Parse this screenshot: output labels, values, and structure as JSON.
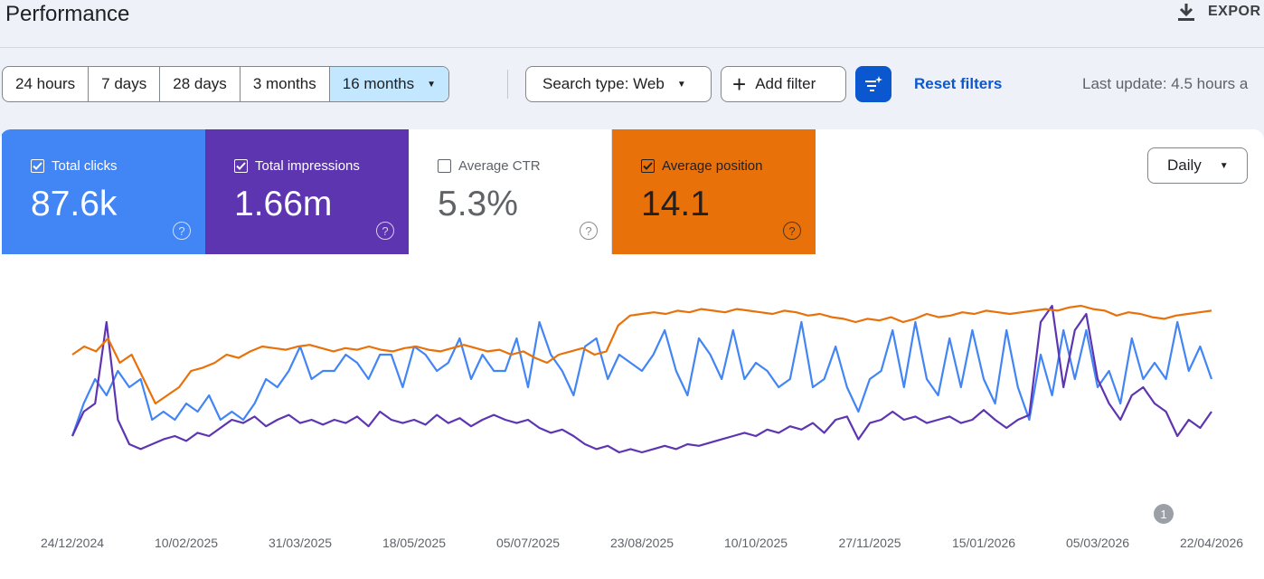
{
  "header": {
    "title": "Performance",
    "export_label": "EXPOR"
  },
  "toolbar": {
    "ranges": [
      "24 hours",
      "7 days",
      "28 days",
      "3 months",
      "16 months"
    ],
    "active_range": "16 months",
    "search_type": "Search type: Web",
    "add_filter": "Add filter",
    "reset_filters": "Reset filters",
    "last_update": "Last update: 4.5 hours a"
  },
  "metrics": [
    {
      "label": "Total clicks",
      "value": "87.6k",
      "checked": true,
      "color": "#4285f4"
    },
    {
      "label": "Total impressions",
      "value": "1.66m",
      "checked": true,
      "color": "#5e35b1"
    },
    {
      "label": "Average CTR",
      "value": "5.3%",
      "checked": false,
      "color": "#ffffff"
    },
    {
      "label": "Average position",
      "value": "14.1",
      "checked": true,
      "color": "#e8710a"
    }
  ],
  "granularity": "Daily",
  "annotation_badge": "1",
  "chart_data": {
    "type": "line",
    "x_tick_labels": [
      "24/12/2024",
      "10/02/2025",
      "31/03/2025",
      "18/05/2025",
      "05/07/2025",
      "23/08/2025",
      "10/10/2025",
      "27/11/2025",
      "15/01/2026",
      "05/03/2026",
      "22/04/2026"
    ],
    "grid": false,
    "series": [
      {
        "name": "Total clicks",
        "color": "#4285f4",
        "values": [
          0.2,
          0.4,
          0.55,
          0.45,
          0.6,
          0.5,
          0.55,
          0.3,
          0.35,
          0.3,
          0.4,
          0.35,
          0.45,
          0.3,
          0.35,
          0.3,
          0.4,
          0.55,
          0.5,
          0.6,
          0.75,
          0.55,
          0.6,
          0.6,
          0.7,
          0.65,
          0.55,
          0.7,
          0.7,
          0.5,
          0.75,
          0.7,
          0.6,
          0.65,
          0.8,
          0.55,
          0.7,
          0.6,
          0.6,
          0.8,
          0.5,
          0.9,
          0.7,
          0.6,
          0.45,
          0.75,
          0.8,
          0.55,
          0.7,
          0.65,
          0.6,
          0.7,
          0.85,
          0.6,
          0.45,
          0.8,
          0.7,
          0.55,
          0.85,
          0.55,
          0.65,
          0.6,
          0.5,
          0.55,
          0.9,
          0.5,
          0.55,
          0.75,
          0.5,
          0.35,
          0.55,
          0.6,
          0.85,
          0.5,
          0.9,
          0.55,
          0.45,
          0.8,
          0.5,
          0.85,
          0.55,
          0.4,
          0.85,
          0.5,
          0.3,
          0.7,
          0.45,
          0.85,
          0.55,
          0.85,
          0.5,
          0.6,
          0.4,
          0.8,
          0.55,
          0.65,
          0.55,
          0.9,
          0.6,
          0.75,
          0.55
        ]
      },
      {
        "name": "Total impressions",
        "color": "#5e35b1",
        "values": [
          0.2,
          0.35,
          0.4,
          0.9,
          0.3,
          0.15,
          0.12,
          0.15,
          0.18,
          0.2,
          0.17,
          0.22,
          0.2,
          0.25,
          0.3,
          0.28,
          0.32,
          0.26,
          0.3,
          0.33,
          0.28,
          0.3,
          0.27,
          0.3,
          0.28,
          0.32,
          0.26,
          0.35,
          0.3,
          0.28,
          0.3,
          0.27,
          0.33,
          0.28,
          0.31,
          0.26,
          0.3,
          0.33,
          0.3,
          0.28,
          0.3,
          0.25,
          0.22,
          0.24,
          0.2,
          0.15,
          0.12,
          0.14,
          0.1,
          0.12,
          0.1,
          0.12,
          0.14,
          0.12,
          0.15,
          0.14,
          0.16,
          0.18,
          0.2,
          0.22,
          0.2,
          0.24,
          0.22,
          0.26,
          0.24,
          0.28,
          0.22,
          0.3,
          0.32,
          0.18,
          0.28,
          0.3,
          0.35,
          0.3,
          0.32,
          0.28,
          0.3,
          0.32,
          0.28,
          0.3,
          0.36,
          0.3,
          0.25,
          0.3,
          0.33,
          0.9,
          1.0,
          0.5,
          0.85,
          0.95,
          0.55,
          0.4,
          0.3,
          0.45,
          0.5,
          0.4,
          0.35,
          0.2,
          0.3,
          0.25,
          0.35
        ]
      },
      {
        "name": "Average position",
        "color": "#e8710a",
        "values": [
          0.7,
          0.75,
          0.72,
          0.8,
          0.65,
          0.7,
          0.55,
          0.4,
          0.45,
          0.5,
          0.6,
          0.62,
          0.65,
          0.7,
          0.68,
          0.72,
          0.75,
          0.74,
          0.73,
          0.75,
          0.76,
          0.74,
          0.72,
          0.74,
          0.73,
          0.75,
          0.73,
          0.72,
          0.74,
          0.75,
          0.73,
          0.72,
          0.74,
          0.76,
          0.74,
          0.72,
          0.73,
          0.7,
          0.72,
          0.68,
          0.65,
          0.7,
          0.72,
          0.74,
          0.7,
          0.72,
          0.88,
          0.94,
          0.95,
          0.96,
          0.95,
          0.97,
          0.96,
          0.98,
          0.97,
          0.96,
          0.98,
          0.97,
          0.96,
          0.95,
          0.97,
          0.96,
          0.94,
          0.95,
          0.93,
          0.92,
          0.9,
          0.92,
          0.91,
          0.93,
          0.9,
          0.92,
          0.95,
          0.93,
          0.94,
          0.96,
          0.95,
          0.97,
          0.96,
          0.95,
          0.96,
          0.97,
          0.98,
          0.97,
          0.99,
          1.0,
          0.98,
          0.97,
          0.94,
          0.96,
          0.95,
          0.93,
          0.92,
          0.94,
          0.95,
          0.96,
          0.97
        ]
      }
    ]
  }
}
